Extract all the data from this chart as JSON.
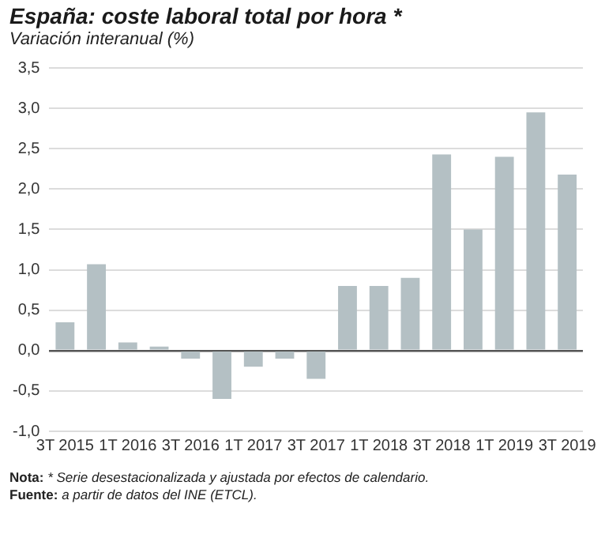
{
  "chart_data": {
    "type": "bar",
    "title": "España: coste laboral total por hora *",
    "subtitle": "Variación interanual (%)",
    "categories": [
      "3T 2015",
      null,
      "1T 2016",
      null,
      "3T 2016",
      null,
      "1T 2017",
      null,
      "3T 2017",
      null,
      "1T 2018",
      null,
      "3T 2018",
      null,
      "1T 2019",
      null,
      "3T 2019"
    ],
    "values": [
      0.35,
      1.07,
      0.1,
      0.05,
      -0.1,
      -0.6,
      -0.2,
      -0.1,
      -0.35,
      0.8,
      0.8,
      0.9,
      2.43,
      1.5,
      2.4,
      2.95,
      2.18
    ],
    "color": "#b4c0c4",
    "ylim": [
      -1,
      3.5
    ],
    "yticks": [
      {
        "value": -1,
        "label": "-1,0"
      },
      {
        "value": -0.5,
        "label": "-0,5"
      },
      {
        "value": 0,
        "label": "0,0"
      },
      {
        "value": 0.5,
        "label": "0,5"
      },
      {
        "value": 1,
        "label": "1,0"
      },
      {
        "value": 1.5,
        "label": "1,5"
      },
      {
        "value": 2,
        "label": "2,0"
      },
      {
        "value": 2.5,
        "label": "2,5"
      },
      {
        "value": 3,
        "label": "3,0"
      },
      {
        "value": 3.5,
        "label": "3,5"
      }
    ],
    "grid": "y",
    "legend": false,
    "annotations": [
      "Nota: * Serie desestacionalizada y ajustada por efectos de calendario.",
      "Fuente: a partir de datos del INE (ETCL)."
    ]
  }
}
